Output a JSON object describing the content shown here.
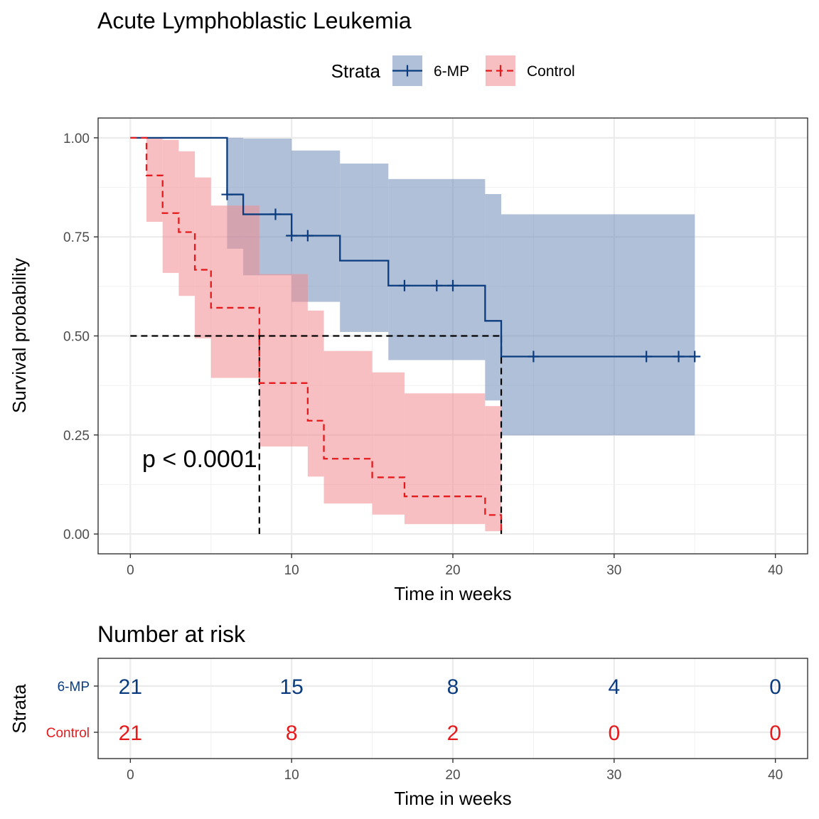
{
  "chart_data": [
    {
      "type": "line",
      "subtype": "kaplan-meier-step",
      "title": "Acute Lymphoblastic Leukemia",
      "xlabel": "Time in weeks",
      "ylabel": "Survival probability",
      "xlim": [
        -2,
        42
      ],
      "ylim": [
        -0.05,
        1.05
      ],
      "x_ticks": [
        0,
        10,
        20,
        30,
        40
      ],
      "y_ticks": [
        0.0,
        0.25,
        0.5,
        0.75,
        1.0
      ],
      "y_tick_labels": [
        "0.00",
        "0.25",
        "0.50",
        "0.75",
        "1.00"
      ],
      "grid": true,
      "legend": {
        "title": "Strata",
        "position": "top"
      },
      "annotation": "p < 0.0001",
      "median_line": {
        "y": 0.5,
        "medians": [
          8,
          23
        ]
      },
      "series": [
        {
          "name": "6-MP",
          "color": "#0b3c7f",
          "fill": "#6f8db8",
          "dash": "solid",
          "steps": [
            {
              "x": 0,
              "surv": 1.0,
              "lower": 1.0,
              "upper": 1.0
            },
            {
              "x": 6,
              "surv": 0.857,
              "lower": 0.72,
              "upper": 1.0
            },
            {
              "x": 7,
              "surv": 0.807,
              "lower": 0.653,
              "upper": 0.998
            },
            {
              "x": 10,
              "surv": 0.753,
              "lower": 0.586,
              "upper": 0.968
            },
            {
              "x": 13,
              "surv": 0.69,
              "lower": 0.51,
              "upper": 0.935
            },
            {
              "x": 16,
              "surv": 0.627,
              "lower": 0.439,
              "upper": 0.896
            },
            {
              "x": 22,
              "surv": 0.538,
              "lower": 0.337,
              "upper": 0.858
            },
            {
              "x": 23,
              "surv": 0.448,
              "lower": 0.249,
              "upper": 0.807
            },
            {
              "x": 35,
              "surv": 0.448,
              "lower": 0.249,
              "upper": 0.807
            }
          ],
          "censored": [
            6,
            9,
            10,
            11,
            17,
            19,
            20,
            25,
            32,
            34,
            35
          ],
          "risk": [
            21,
            15,
            8,
            4,
            0
          ]
        },
        {
          "name": "Control",
          "color": "#e41a1c",
          "fill": "#f28b8f",
          "dash": "dashed",
          "steps": [
            {
              "x": 0,
              "surv": 1.0,
              "lower": 1.0,
              "upper": 1.0
            },
            {
              "x": 1,
              "surv": 0.905,
              "lower": 0.788,
              "upper": 1.0
            },
            {
              "x": 2,
              "surv": 0.81,
              "lower": 0.659,
              "upper": 0.995
            },
            {
              "x": 3,
              "surv": 0.762,
              "lower": 0.601,
              "upper": 0.966
            },
            {
              "x": 4,
              "surv": 0.667,
              "lower": 0.494,
              "upper": 0.9
            },
            {
              "x": 5,
              "surv": 0.571,
              "lower": 0.394,
              "upper": 0.829
            },
            {
              "x": 8,
              "surv": 0.381,
              "lower": 0.221,
              "upper": 0.656
            },
            {
              "x": 11,
              "surv": 0.286,
              "lower": 0.145,
              "upper": 0.564
            },
            {
              "x": 12,
              "surv": 0.19,
              "lower": 0.077,
              "upper": 0.462
            },
            {
              "x": 15,
              "surv": 0.143,
              "lower": 0.049,
              "upper": 0.408
            },
            {
              "x": 17,
              "surv": 0.095,
              "lower": 0.025,
              "upper": 0.355
            },
            {
              "x": 22,
              "surv": 0.048,
              "lower": 0.007,
              "upper": 0.323
            },
            {
              "x": 23,
              "surv": 0.0,
              "lower": 0.0,
              "upper": 0.0
            }
          ],
          "censored": [],
          "risk": [
            21,
            8,
            2,
            0,
            0
          ]
        }
      ]
    },
    {
      "type": "table",
      "title": "Number at risk",
      "xlabel": "Time in weeks",
      "ylabel": "Strata",
      "x_ticks": [
        0,
        10,
        20,
        30,
        40
      ],
      "rows": [
        "6-MP",
        "Control"
      ]
    }
  ]
}
